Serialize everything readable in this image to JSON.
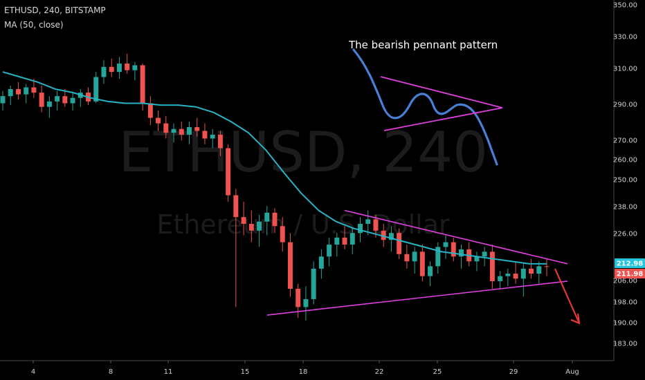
{
  "header": {
    "symbol_line": "ETHUSD, 240, BITSTAMP",
    "indicator_line": "MA (50, close)"
  },
  "watermark": {
    "main": "ETHUSD, 240",
    "sub": "Ethereum / U.S. Dollar"
  },
  "annotation": "The bearish pennant pattern",
  "price_labels": {
    "ma_value": "212.98",
    "last_price": "211.98",
    "ma_color": "#26c6da",
    "price_color": "#ef5350"
  },
  "colors": {
    "background": "#000000",
    "up_candle": "#26a69a",
    "down_candle": "#ef5350",
    "moving_average": "#26b4c6",
    "trendlines": "#e040e0",
    "arrow": "#e53935",
    "sketch_curve": "#4a7fd6"
  },
  "chart_data": {
    "type": "candlestick",
    "title": "ETHUSD, 240, BITSTAMP",
    "y_axis": {
      "side": "right",
      "scale": "log",
      "ticks": [
        350,
        330,
        310,
        290,
        270,
        260,
        250,
        238,
        226,
        206,
        198,
        190,
        183
      ]
    },
    "x_axis": {
      "ticks": [
        "4",
        "8",
        "11",
        "15",
        "18",
        "22",
        "25",
        "29",
        "Aug"
      ]
    },
    "grid": false,
    "series": [
      {
        "name": "MA (50, close)",
        "type": "line",
        "values": [
          308,
          305,
          302,
          298,
          296,
          293,
          291,
          290,
          290,
          289,
          289,
          288,
          285,
          280,
          274,
          265,
          254,
          244,
          236,
          231,
          228,
          226,
          224,
          222,
          220,
          218,
          217,
          216,
          215,
          214,
          213,
          212.98
        ]
      }
    ],
    "candles_sampled": {
      "ohlc": [
        [
          290,
          297,
          286,
          294
        ],
        [
          294,
          300,
          289,
          298
        ],
        [
          298,
          302,
          292,
          295
        ],
        [
          295,
          301,
          290,
          299
        ],
        [
          299,
          304,
          293,
          296
        ],
        [
          296,
          300,
          285,
          288
        ],
        [
          288,
          294,
          282,
          291
        ],
        [
          291,
          297,
          286,
          294
        ],
        [
          294,
          298,
          288,
          290
        ],
        [
          290,
          296,
          286,
          293
        ],
        [
          293,
          298,
          288,
          296
        ],
        [
          296,
          299,
          289,
          291
        ],
        [
          291,
          308,
          290,
          305
        ],
        [
          305,
          315,
          301,
          311
        ],
        [
          311,
          316,
          305,
          308
        ],
        [
          308,
          317,
          304,
          313
        ],
        [
          313,
          319,
          307,
          309
        ],
        [
          309,
          314,
          303,
          312
        ],
        [
          312,
          313,
          286,
          290
        ],
        [
          290,
          294,
          278,
          282
        ],
        [
          282,
          286,
          275,
          279
        ],
        [
          279,
          283,
          271,
          274
        ],
        [
          274,
          279,
          269,
          276
        ],
        [
          276,
          280,
          270,
          273
        ],
        [
          273,
          280,
          268,
          277
        ],
        [
          277,
          282,
          272,
          275
        ],
        [
          275,
          279,
          268,
          271
        ],
        [
          271,
          276,
          266,
          273
        ],
        [
          273,
          275,
          262,
          266
        ],
        [
          266,
          268,
          240,
          243
        ],
        [
          243,
          246,
          196,
          233
        ],
        [
          233,
          240,
          225,
          230
        ],
        [
          230,
          236,
          222,
          227
        ],
        [
          227,
          234,
          220,
          231
        ],
        [
          231,
          238,
          225,
          235
        ],
        [
          235,
          237,
          226,
          229
        ],
        [
          229,
          233,
          218,
          222
        ],
        [
          222,
          226,
          200,
          203
        ],
        [
          203,
          205,
          192,
          196
        ],
        [
          196,
          204,
          191,
          199
        ],
        [
          199,
          214,
          197,
          211
        ],
        [
          211,
          219,
          207,
          216
        ],
        [
          216,
          224,
          212,
          221
        ],
        [
          221,
          226,
          216,
          224
        ],
        [
          224,
          229,
          219,
          221
        ],
        [
          221,
          228,
          217,
          226
        ],
        [
          226,
          233,
          222,
          230
        ],
        [
          230,
          236,
          225,
          232
        ],
        [
          232,
          234,
          224,
          227
        ],
        [
          227,
          230,
          220,
          223
        ],
        [
          223,
          229,
          218,
          226
        ],
        [
          226,
          228,
          215,
          217
        ],
        [
          217,
          221,
          211,
          214
        ],
        [
          214,
          220,
          209,
          218
        ],
        [
          218,
          221,
          206,
          208
        ],
        [
          208,
          214,
          204,
          212
        ],
        [
          212,
          222,
          209,
          220
        ],
        [
          220,
          225,
          215,
          222
        ],
        [
          222,
          224,
          214,
          216
        ],
        [
          216,
          221,
          211,
          219
        ],
        [
          219,
          222,
          212,
          214
        ],
        [
          214,
          218,
          210,
          216
        ],
        [
          216,
          220,
          212,
          218
        ],
        [
          218,
          221,
          203,
          206
        ],
        [
          206,
          210,
          203,
          208
        ],
        [
          208,
          211,
          204,
          209
        ],
        [
          209,
          214,
          205,
          207
        ],
        [
          207,
          213,
          200,
          211
        ],
        [
          211,
          215,
          207,
          209
        ],
        [
          209,
          214,
          205,
          212
        ],
        [
          212,
          215,
          208,
          211.98
        ]
      ]
    },
    "drawings": {
      "pennant_upper_line": {
        "from": [
          "18",
          236
        ],
        "to": [
          "Aug",
          213
        ]
      },
      "pennant_lower_line": {
        "from": [
          "15",
          193
        ],
        "to": [
          "Aug",
          206
        ]
      },
      "breakdown_arrow": {
        "from": [
          "Aug",
          211
        ],
        "to": [
          "Aug",
          190
        ]
      },
      "sketch": "The bearish pennant pattern"
    }
  }
}
